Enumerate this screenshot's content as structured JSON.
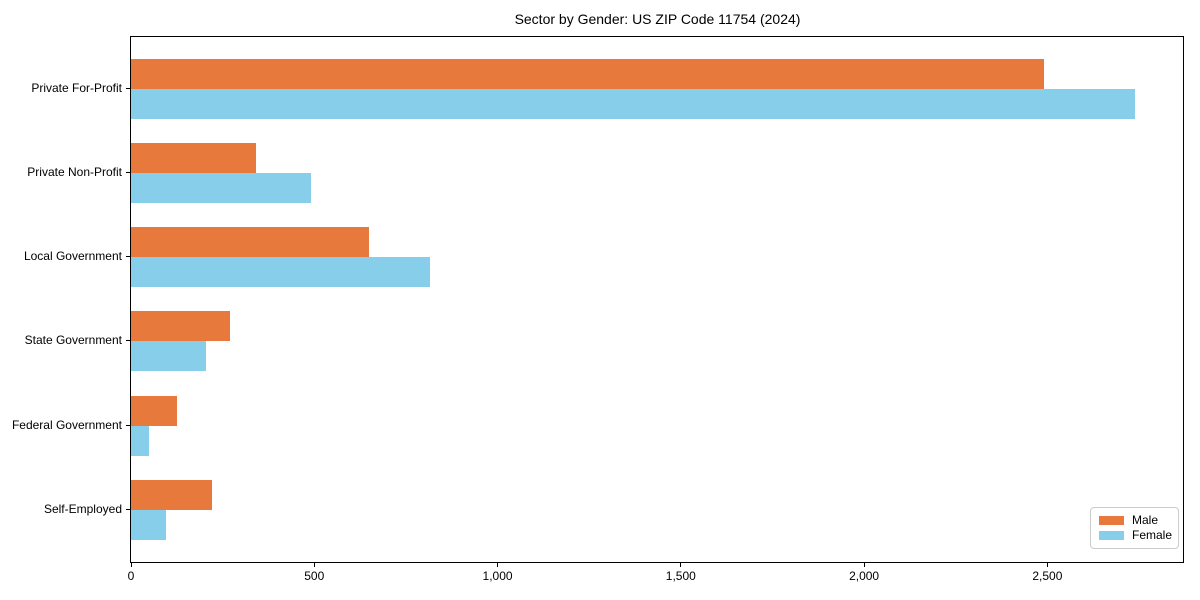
{
  "chart_data": {
    "type": "bar",
    "orientation": "horizontal",
    "title": "Sector by Gender: US ZIP Code 11754 (2024)",
    "categories": [
      "Private For-Profit",
      "Private Non-Profit",
      "Local Government",
      "State Government",
      "Federal Government",
      "Self-Employed"
    ],
    "series": [
      {
        "name": "Male",
        "color": "#E8793D",
        "values": [
          2490,
          340,
          650,
          270,
          125,
          220
        ]
      },
      {
        "name": "Female",
        "color": "#87CEEB",
        "values": [
          2740,
          490,
          815,
          205,
          50,
          95
        ]
      }
    ],
    "xlabel": "",
    "ylabel": "",
    "xlim": [
      0,
      2870
    ],
    "x_ticks": [
      0,
      500,
      1000,
      1500,
      2000,
      2500
    ],
    "x_tick_labels": [
      "0",
      "500",
      "1,000",
      "1,500",
      "2,000",
      "2,500"
    ],
    "grid": false,
    "legend": {
      "position": "lower right"
    },
    "colors": {
      "axis": "#000000",
      "legend_border": "#cccccc",
      "background": "#ffffff"
    }
  }
}
